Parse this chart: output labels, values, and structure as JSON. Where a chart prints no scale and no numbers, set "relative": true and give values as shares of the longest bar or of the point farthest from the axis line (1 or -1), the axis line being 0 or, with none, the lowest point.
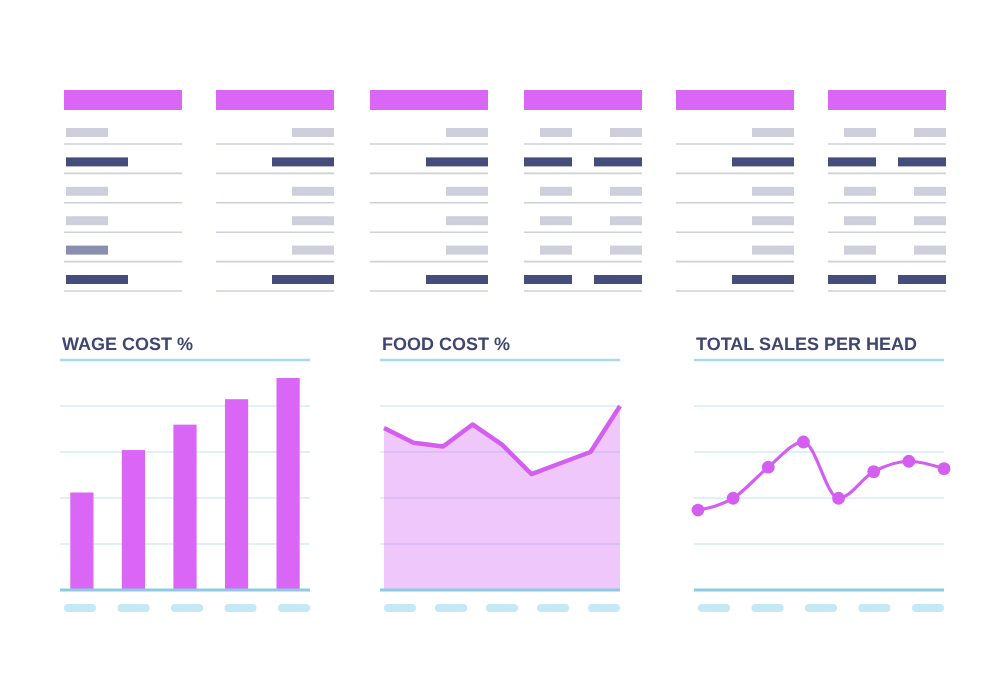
{
  "chart_data": [
    {
      "type": "bar",
      "title": "WAGE COST %",
      "relative": true,
      "categories": [
        null,
        null,
        null,
        null,
        null
      ],
      "values": [
        0.46,
        0.66,
        0.78,
        0.9,
        1
      ],
      "color": "#d966f5",
      "grid": true
    },
    {
      "type": "area",
      "title": "FOOD COST %",
      "relative": true,
      "categories": [
        null,
        null,
        null,
        null,
        null,
        null,
        null,
        null,
        null
      ],
      "values": [
        0.88,
        0.8,
        0.78,
        0.9,
        0.79,
        0.63,
        0.69,
        0.75,
        1
      ],
      "color": "#d35ef0",
      "grid": true
    },
    {
      "type": "line",
      "title": "TOTAL SALES PER HEAD",
      "relative": true,
      "categories": [
        null,
        null,
        null,
        null,
        null,
        null,
        null,
        null
      ],
      "values": [
        0.54,
        0.62,
        0.83,
        1,
        0.62,
        0.8,
        0.87,
        0.82
      ],
      "color": "#d35ef0",
      "marker": "circle",
      "grid": true
    }
  ]
}
